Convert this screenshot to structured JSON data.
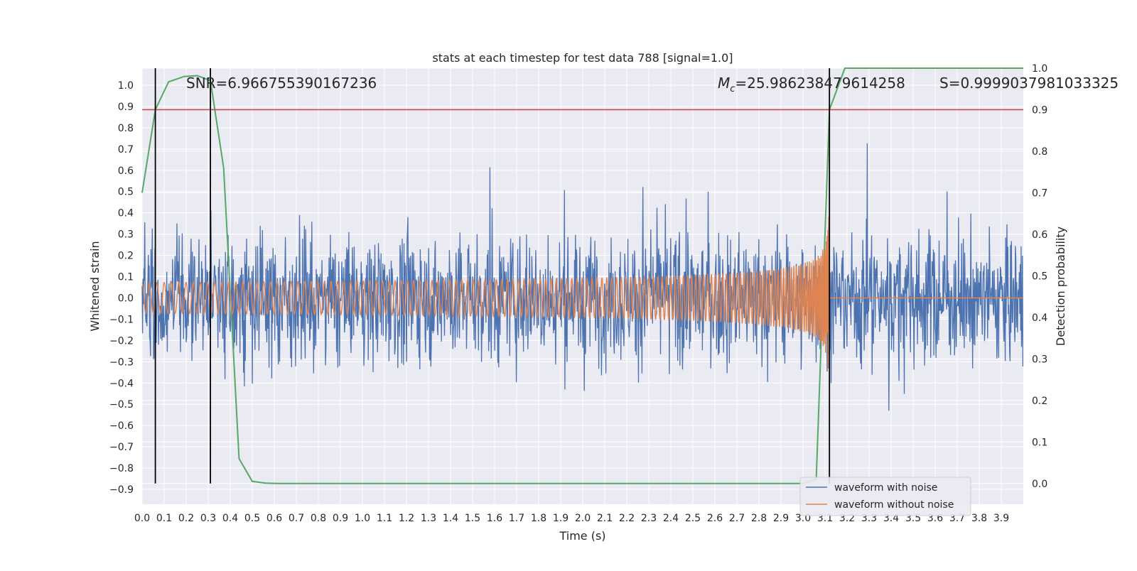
{
  "chart_data": {
    "type": "line",
    "title": "stats at each timestep for test data 788 [signal=1.0]",
    "xlabel": "Time (s)",
    "ylabel_left": "Whitened strain",
    "ylabel_right": "Detection probability",
    "xlim": [
      0.0,
      4.0
    ],
    "ylim_left": [
      -0.97,
      1.08
    ],
    "ylim_right": [
      -0.05,
      1.0
    ],
    "x_ticks": [
      "0.0",
      "0.1",
      "0.2",
      "0.3",
      "0.4",
      "0.5",
      "0.6",
      "0.7",
      "0.8",
      "0.9",
      "1.0",
      "1.1",
      "1.2",
      "1.3",
      "1.4",
      "1.5",
      "1.6",
      "1.7",
      "1.8",
      "1.9",
      "2.0",
      "2.1",
      "2.2",
      "2.3",
      "2.4",
      "2.5",
      "2.6",
      "2.7",
      "2.8",
      "2.9",
      "3.0",
      "3.1",
      "3.2",
      "3.3",
      "3.4",
      "3.5",
      "3.6",
      "3.7",
      "3.8",
      "3.9"
    ],
    "y_ticks_left": [
      "1.0",
      "0.9",
      "0.8",
      "0.7",
      "0.6",
      "0.5",
      "0.4",
      "0.3",
      "0.2",
      "0.1",
      "0.0",
      "−0.1",
      "−0.2",
      "−0.3",
      "−0.4",
      "−0.5",
      "−0.6",
      "−0.7",
      "−0.8",
      "−0.9"
    ],
    "y_ticks_right": [
      "1.0",
      "0.9",
      "0.8",
      "0.7",
      "0.6",
      "0.5",
      "0.4",
      "0.3",
      "0.2",
      "0.1",
      "0.0"
    ],
    "annotations": {
      "snr": "SNR=6.966755390167236",
      "mc_symbol": "M",
      "mc_sub": "c",
      "mc_value": "=25.986238479614258",
      "s": "S=0.9999037981033325"
    },
    "threshold": {
      "value": 0.9,
      "axis": "right",
      "color": "#c44e52"
    },
    "vertical_markers_s": [
      0.06,
      0.31,
      3.12
    ],
    "series": [
      {
        "name": "waveform with noise",
        "color": "#4c72b0",
        "axis": "left",
        "style": "noise",
        "amplitude_approx": 0.95
      },
      {
        "name": "waveform without noise",
        "color": "#dd8452",
        "axis": "left",
        "style": "chirp",
        "merger_time": 3.12,
        "peak_amplitude": 0.38
      },
      {
        "color": "#55a868",
        "axis": "right",
        "x": [
          0.0,
          0.06,
          0.12,
          0.19,
          0.25,
          0.31,
          0.37,
          0.44,
          0.5,
          0.56,
          0.62,
          0.69,
          1.0,
          1.5,
          2.0,
          2.5,
          3.0,
          3.06,
          3.12,
          3.19,
          3.25,
          3.5,
          3.75,
          4.0
        ],
        "y": [
          0.7,
          0.9,
          0.967,
          0.98,
          0.982,
          0.97,
          0.76,
          0.06,
          0.005,
          0.001,
          0.0,
          0.0,
          0.0,
          0.0,
          0.0,
          0.0,
          0.0,
          0.01,
          0.9,
          1.0,
          1.0,
          1.0,
          1.0,
          1.0
        ]
      }
    ],
    "legend_position": "lower-right"
  }
}
